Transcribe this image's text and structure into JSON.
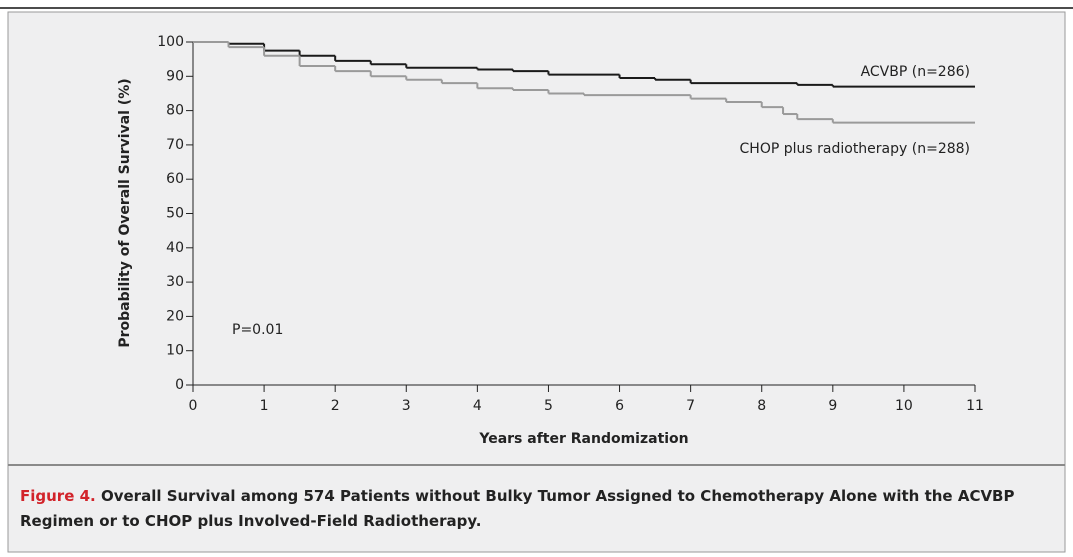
{
  "chart_data": {
    "type": "line",
    "step": true,
    "ylabel": "Probability of Overall Survival (%)",
    "xlabel": "Years after Randomization",
    "annotations": [
      "P=0.01"
    ],
    "figure_label": "Figure 4.",
    "caption": "Overall Survival among 574 Patients without Bulky Tumor Assigned to Chemotherapy Alone with the ACVBP Regimen or to CHOP plus Involved-Field Radiotherapy.",
    "xlim": [
      0,
      11
    ],
    "xticks": [
      0,
      1,
      2,
      3,
      4,
      5,
      6,
      7,
      8,
      9,
      10,
      11
    ],
    "ylim": [
      0,
      100
    ],
    "yticks": [
      0,
      10,
      20,
      30,
      40,
      50,
      60,
      70,
      80,
      90,
      100
    ],
    "series": [
      {
        "name": "ACVBP (n=286)",
        "color": "#1a1a1a",
        "x": [
          0,
          0.5,
          1,
          1.5,
          2,
          2.5,
          3,
          4,
          4.5,
          5,
          6,
          6.5,
          7,
          8.5,
          9,
          11
        ],
        "values": [
          100,
          99.5,
          97.5,
          96,
          94.5,
          93.5,
          92.5,
          92,
          91.5,
          90.5,
          89.5,
          89,
          88,
          87.5,
          87,
          87
        ]
      },
      {
        "name": "CHOP plus radiotherapy (n=288)",
        "color": "#9a9a9a",
        "x": [
          0,
          0.5,
          1,
          1.5,
          2,
          2.5,
          3,
          3.5,
          4,
          4.5,
          5,
          5.5,
          7,
          7.5,
          8,
          8.3,
          8.5,
          9,
          11
        ],
        "values": [
          100,
          98.5,
          96,
          93,
          91.5,
          90,
          89,
          88,
          86.5,
          86,
          85,
          84.5,
          83.5,
          82.5,
          81,
          79,
          77.5,
          76.5,
          76.5
        ]
      }
    ]
  }
}
